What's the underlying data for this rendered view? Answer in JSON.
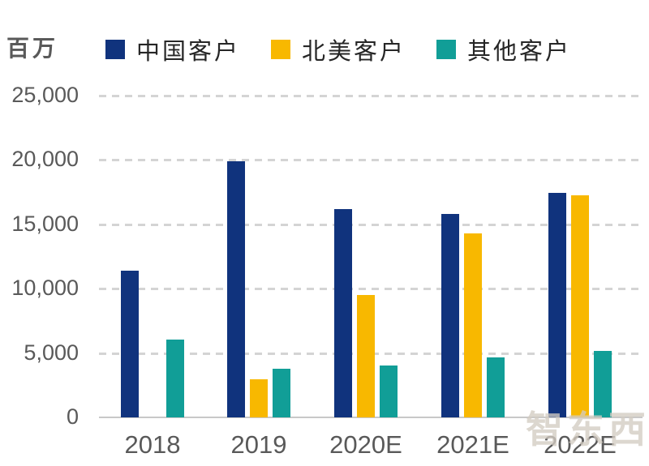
{
  "unit_label": "百万",
  "watermark": "智东西",
  "colors": {
    "china": "#10337d",
    "north_america": "#f8b800",
    "other": "#119e97",
    "axis_text": "#595959",
    "legend_text": "#262626",
    "gridline": "#d4d4d4",
    "axis_line": "#c8c8c8",
    "watermark": "#d3ccc2"
  },
  "chart_data": {
    "type": "bar",
    "title": "",
    "unit": "百万",
    "categories": [
      "2018",
      "2019",
      "2020E",
      "2021E",
      "2022E"
    ],
    "series": [
      {
        "key": "china-customers",
        "name": "中国客户",
        "color": "#10337d",
        "values": [
          11400,
          19900,
          16200,
          15800,
          17450
        ]
      },
      {
        "key": "north-america-customers",
        "name": "北美客户",
        "color": "#f8b800",
        "values": [
          0,
          2950,
          9500,
          14300,
          17250
        ]
      },
      {
        "key": "other-customers",
        "name": "其他客户",
        "color": "#119e97",
        "values": [
          6050,
          3800,
          4000,
          4650,
          5150
        ]
      }
    ],
    "ylim": [
      0,
      25000
    ],
    "yticks": [
      0,
      5000,
      10000,
      15000,
      20000,
      25000
    ],
    "ytick_labels": [
      "0",
      "5,000",
      "10,000",
      "15,000",
      "20,000",
      "25,000"
    ],
    "grid": "horizontal-dashed",
    "legend_position": "top"
  }
}
